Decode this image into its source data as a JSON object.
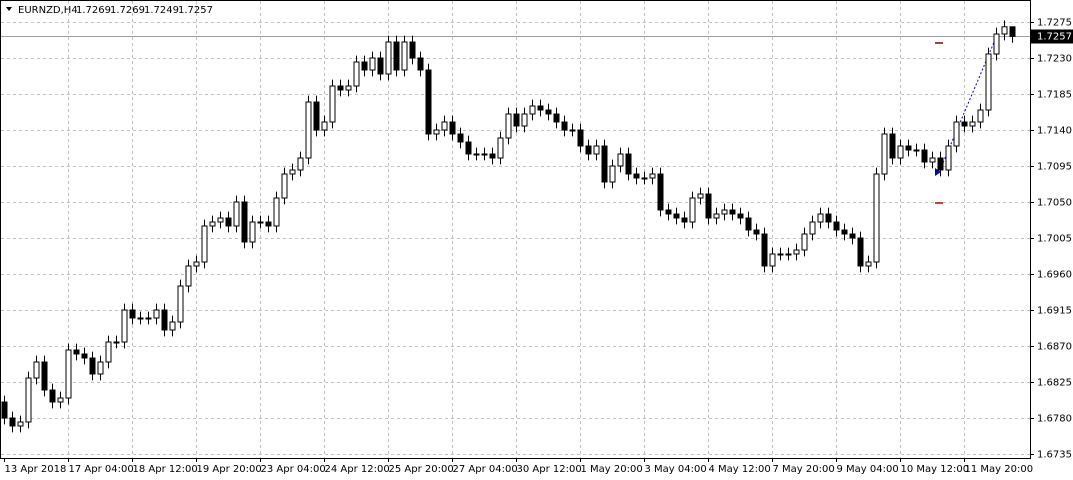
{
  "chart_data": {
    "type": "candlestick",
    "title": "EURNZD,H4",
    "categories": [
      "13 Apr 2018",
      null,
      null,
      null,
      null,
      null,
      null,
      null,
      "17 Apr 04:00",
      null,
      null,
      null,
      null,
      null,
      null,
      null,
      "18 Apr 12:00",
      null,
      null,
      null,
      null,
      null,
      null,
      null,
      "19 Apr 20:00",
      null,
      null,
      null,
      null,
      null,
      null,
      null,
      "23 Apr 04:00",
      null,
      null,
      null,
      null,
      null,
      null,
      null,
      "24 Apr 12:00",
      null,
      null,
      null,
      null,
      null,
      null,
      null,
      "25 Apr 20:00",
      null,
      null,
      null,
      null,
      null,
      null,
      null,
      "27 Apr 04:00",
      null,
      null,
      null,
      null,
      null,
      null,
      null,
      "30 Apr 12:00",
      null,
      null,
      null,
      null,
      null,
      null,
      null,
      "1 May 20:00",
      null,
      null,
      null,
      null,
      null,
      null,
      null,
      "3 May 04:00",
      null,
      null,
      null,
      null,
      null,
      null,
      null,
      "4 May 12:00",
      null,
      null,
      null,
      null,
      null,
      null,
      null,
      "7 May 20:00",
      null,
      null,
      null,
      null,
      null,
      null,
      null,
      "9 May 04:00",
      null,
      null,
      null,
      null,
      null,
      null,
      null,
      "10 May 12:00",
      null,
      null,
      null,
      null,
      null,
      null,
      null,
      "11 May 20:00",
      null,
      null,
      null,
      null,
      null,
      null
    ],
    "open": [
      1.68,
      1.678,
      1.677,
      1.6775,
      1.683,
      1.685,
      1.6815,
      1.68,
      1.6805,
      1.6865,
      1.686,
      1.6855,
      1.6835,
      1.685,
      1.6875,
      1.6875,
      1.6915,
      1.6905,
      1.6905,
      1.6905,
      1.6915,
      1.689,
      1.69,
      1.6945,
      1.697,
      1.6975,
      1.702,
      1.7025,
      1.703,
      1.702,
      1.705,
      1.7,
      1.7025,
      1.7025,
      1.702,
      1.7055,
      1.7085,
      1.709,
      1.7105,
      1.7175,
      1.714,
      1.715,
      1.7195,
      1.719,
      1.7195,
      1.7225,
      1.7215,
      1.723,
      1.721,
      1.725,
      1.7215,
      1.725,
      1.723,
      1.7215,
      1.7135,
      1.714,
      1.715,
      1.7135,
      1.7125,
      1.711,
      1.711,
      1.711,
      1.7105,
      1.713,
      1.716,
      1.7145,
      1.716,
      1.717,
      1.7165,
      1.716,
      1.715,
      1.714,
      1.714,
      1.712,
      1.711,
      1.712,
      1.7075,
      1.7095,
      1.711,
      1.7085,
      1.708,
      1.708,
      1.7085,
      1.704,
      1.7035,
      1.703,
      1.7025,
      1.7055,
      1.706,
      1.703,
      1.7035,
      1.704,
      1.7035,
      1.703,
      1.7015,
      1.701,
      1.697,
      1.6985,
      1.6985,
      1.6985,
      1.699,
      1.701,
      1.7025,
      1.7035,
      1.7025,
      1.7015,
      1.701,
      1.7005,
      1.697,
      1.6975,
      1.7085,
      1.7135,
      1.7105,
      1.712,
      1.7115,
      1.7115,
      1.71,
      1.7105,
      1.709,
      1.712,
      1.715,
      1.7145,
      1.715,
      1.7165,
      1.7235,
      1.726,
      1.7269
    ],
    "high": [
      1.6808,
      1.6788,
      1.6783,
      1.6838,
      1.6858,
      1.6858,
      1.6823,
      1.6813,
      1.6873,
      1.6873,
      1.6868,
      1.6863,
      1.6858,
      1.6883,
      1.6883,
      1.6923,
      1.6923,
      1.6913,
      1.6913,
      1.6923,
      1.6923,
      1.6908,
      1.6953,
      1.6978,
      1.6983,
      1.7028,
      1.7033,
      1.7038,
      1.7038,
      1.7058,
      1.7058,
      1.7033,
      1.7033,
      1.7033,
      1.7063,
      1.7093,
      1.7098,
      1.7113,
      1.7183,
      1.7183,
      1.7158,
      1.7203,
      1.7203,
      1.7203,
      1.7233,
      1.7233,
      1.7238,
      1.7238,
      1.7258,
      1.7258,
      1.7258,
      1.7258,
      1.7238,
      1.7223,
      1.7148,
      1.7158,
      1.7158,
      1.7143,
      1.7133,
      1.7118,
      1.7118,
      1.7118,
      1.7138,
      1.7168,
      1.7168,
      1.7168,
      1.7178,
      1.7178,
      1.7173,
      1.7168,
      1.7158,
      1.7148,
      1.7148,
      1.7128,
      1.7128,
      1.7128,
      1.7103,
      1.7118,
      1.7118,
      1.7093,
      1.7088,
      1.7093,
      1.7093,
      1.7048,
      1.7043,
      1.7038,
      1.7063,
      1.7068,
      1.7068,
      1.7043,
      1.7048,
      1.7048,
      1.7043,
      1.7038,
      1.7023,
      1.7018,
      1.6993,
      1.6993,
      1.6993,
      1.6998,
      1.7018,
      1.7033,
      1.7043,
      1.7043,
      1.7033,
      1.7023,
      1.7018,
      1.7013,
      1.6983,
      1.7093,
      1.7143,
      1.7143,
      1.7128,
      1.7128,
      1.7123,
      1.7123,
      1.7113,
      1.7113,
      1.7128,
      1.7158,
      1.7158,
      1.7158,
      1.7173,
      1.7243,
      1.7268,
      1.7277,
      1.7269
    ],
    "low": [
      1.6772,
      1.6762,
      1.6762,
      1.6767,
      1.6822,
      1.6807,
      1.6792,
      1.6792,
      1.6797,
      1.6852,
      1.6847,
      1.6827,
      1.6827,
      1.6842,
      1.6867,
      1.6867,
      1.6897,
      1.6897,
      1.6897,
      1.6897,
      1.6882,
      1.6882,
      1.6892,
      1.6937,
      1.6962,
      1.6967,
      1.7012,
      1.7017,
      1.7012,
      1.7012,
      1.6992,
      1.6992,
      1.7017,
      1.7012,
      1.7012,
      1.7047,
      1.7077,
      1.7082,
      1.7097,
      1.7132,
      1.7132,
      1.7142,
      1.7182,
      1.7182,
      1.7187,
      1.7207,
      1.7207,
      1.7202,
      1.7202,
      1.7207,
      1.7207,
      1.7222,
      1.7207,
      1.7127,
      1.7127,
      1.7132,
      1.7127,
      1.7117,
      1.7102,
      1.7102,
      1.7102,
      1.7097,
      1.7097,
      1.7122,
      1.7137,
      1.7137,
      1.7152,
      1.7157,
      1.7152,
      1.7142,
      1.7132,
      1.7132,
      1.7112,
      1.7102,
      1.7102,
      1.7067,
      1.7067,
      1.7087,
      1.7077,
      1.7072,
      1.7072,
      1.7072,
      1.7032,
      1.7027,
      1.7022,
      1.7017,
      1.7017,
      1.7047,
      1.7022,
      1.7022,
      1.7027,
      1.7027,
      1.7022,
      1.7007,
      1.7002,
      1.6962,
      1.6962,
      1.6977,
      1.6977,
      1.6977,
      1.6982,
      1.7002,
      1.7017,
      1.7017,
      1.7007,
      1.7002,
      1.6997,
      1.6962,
      1.6962,
      1.6967,
      1.7077,
      1.7097,
      1.7097,
      1.7107,
      1.7107,
      1.7092,
      1.7092,
      1.7082,
      1.7082,
      1.7112,
      1.7137,
      1.7137,
      1.7142,
      1.7157,
      1.7227,
      1.7252,
      1.7249
    ],
    "close": [
      1.678,
      1.677,
      1.6775,
      1.683,
      1.685,
      1.6815,
      1.68,
      1.6805,
      1.6865,
      1.686,
      1.6855,
      1.6835,
      1.685,
      1.6875,
      1.6875,
      1.6915,
      1.6905,
      1.6905,
      1.6905,
      1.6915,
      1.689,
      1.69,
      1.6945,
      1.697,
      1.6975,
      1.702,
      1.7025,
      1.703,
      1.702,
      1.705,
      1.7,
      1.7025,
      1.7025,
      1.702,
      1.7055,
      1.7085,
      1.709,
      1.7105,
      1.7175,
      1.714,
      1.715,
      1.7195,
      1.719,
      1.7195,
      1.7225,
      1.7215,
      1.723,
      1.721,
      1.725,
      1.7215,
      1.725,
      1.723,
      1.7215,
      1.7135,
      1.714,
      1.715,
      1.7135,
      1.7125,
      1.711,
      1.711,
      1.711,
      1.7105,
      1.713,
      1.716,
      1.7145,
      1.716,
      1.717,
      1.7165,
      1.716,
      1.715,
      1.714,
      1.714,
      1.712,
      1.711,
      1.712,
      1.7075,
      1.7095,
      1.711,
      1.7085,
      1.708,
      1.708,
      1.7085,
      1.704,
      1.7035,
      1.703,
      1.7025,
      1.7055,
      1.706,
      1.703,
      1.7035,
      1.704,
      1.7035,
      1.703,
      1.7015,
      1.701,
      1.697,
      1.6985,
      1.6985,
      1.6985,
      1.699,
      1.701,
      1.7025,
      1.7035,
      1.7025,
      1.7015,
      1.701,
      1.7005,
      1.697,
      1.6975,
      1.7085,
      1.7135,
      1.7105,
      1.712,
      1.7115,
      1.7115,
      1.71,
      1.7105,
      1.709,
      1.712,
      1.715,
      1.7145,
      1.715,
      1.7165,
      1.7235,
      1.726,
      1.7269,
      1.7257
    ],
    "ylim": [
      1.673,
      1.73025
    ],
    "yticks": [
      1.6735,
      {
        "value": 1.678,
        "label": "1.6780"
      },
      1.6825,
      {
        "value": 1.687,
        "label": "1.6870"
      },
      1.6915,
      {
        "value": 1.696,
        "label": "1.6960"
      },
      1.7005,
      {
        "value": 1.705,
        "label": "1.7050"
      },
      1.7095,
      {
        "value": 1.714,
        "label": "1.7140"
      },
      1.7185,
      {
        "value": 1.723,
        "label": "1.7230"
      },
      1.7275
    ],
    "grid": true,
    "up_color": "#ffffff",
    "down_color": "#000000"
  }
}
